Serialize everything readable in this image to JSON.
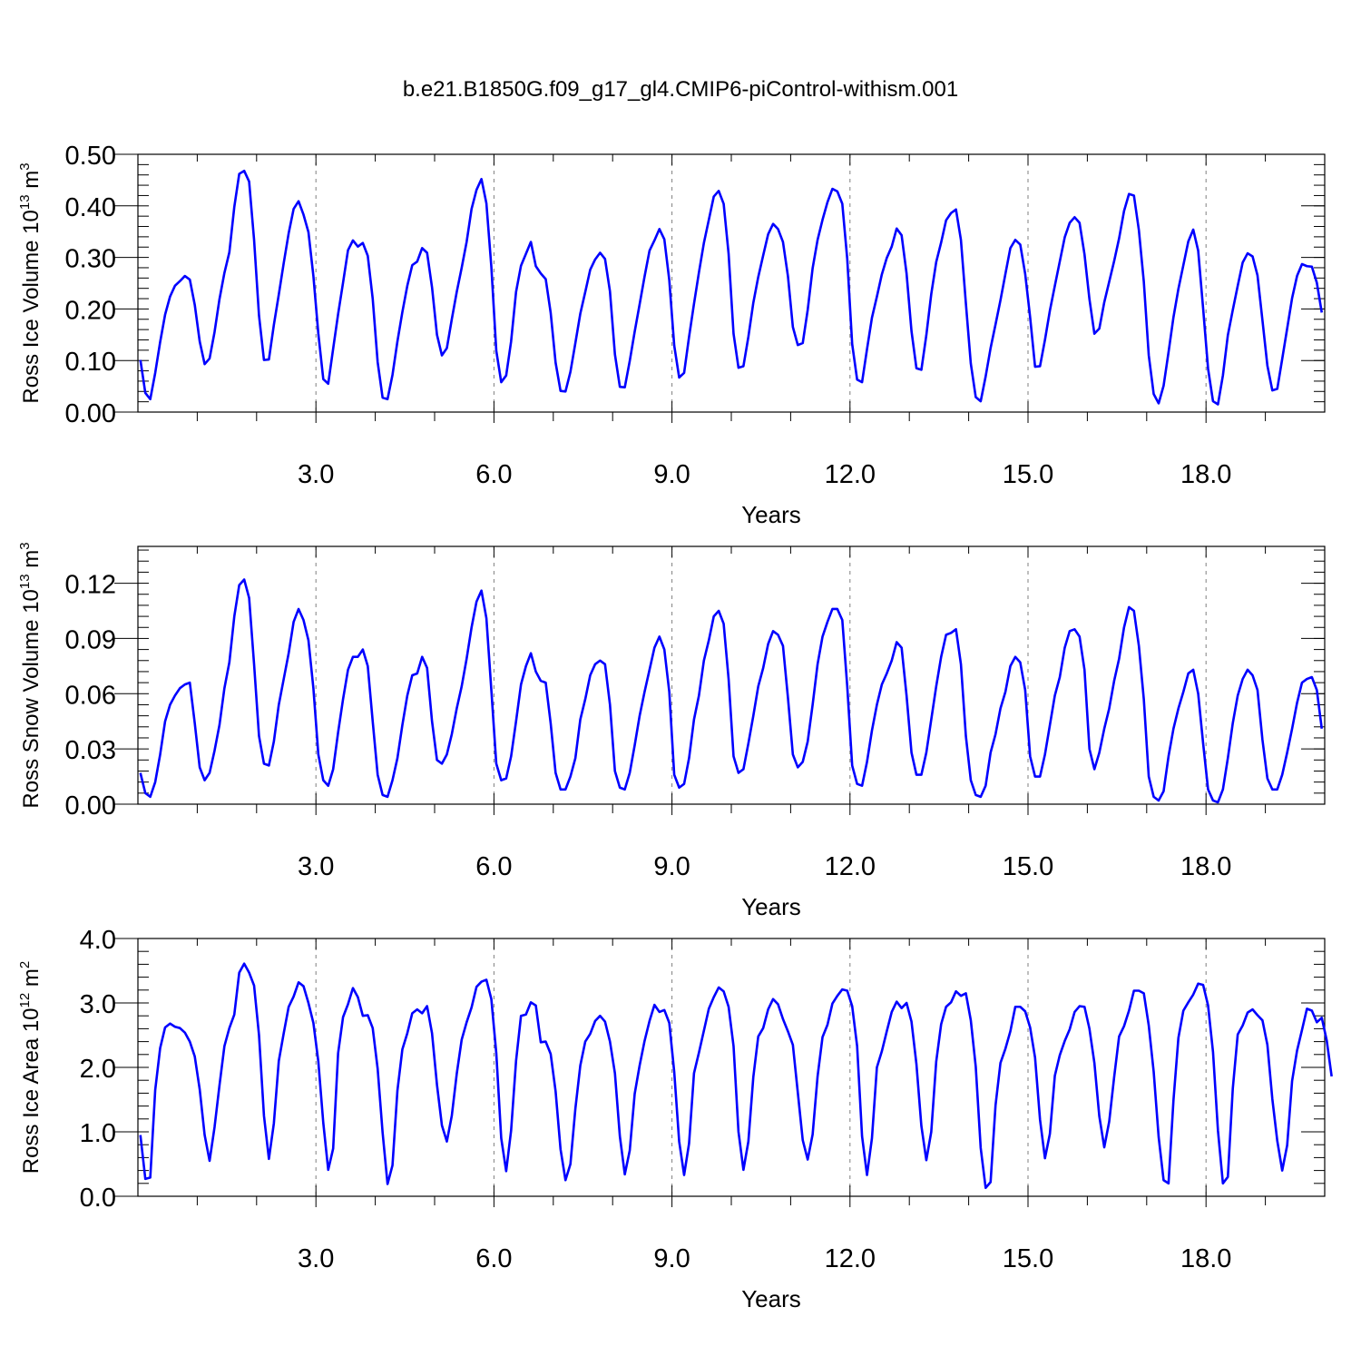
{
  "figure": {
    "title": "b.e21.B1850G.f09_g17_gl4.CMIP6-piControl-withism.001"
  },
  "colors": {
    "series": "#0000ff",
    "frame": "#000000",
    "gridline": "#7f7f7f"
  },
  "chart_data": [
    {
      "type": "line",
      "xlabel": "Years",
      "ylabel": {
        "prefix": "Ross Ice Volume 10",
        "exponent": "13",
        "unit": " m",
        "unit_exponent": "3"
      },
      "xlim": [
        0.0,
        20.0
      ],
      "ylim": [
        0.0,
        0.5
      ],
      "x_ticks": [
        3.0,
        6.0,
        9.0,
        12.0,
        15.0,
        18.0
      ],
      "x_tick_labels": [
        "3.0",
        "6.0",
        "9.0",
        "12.0",
        "15.0",
        "18.0"
      ],
      "y_ticks": [
        0.0,
        0.1,
        0.2,
        0.3,
        0.4,
        0.5
      ],
      "y_tick_labels": [
        "0.00",
        "0.10",
        "0.20",
        "0.30",
        "0.40",
        "0.50"
      ],
      "vertical_dashed_lines_at": [
        3.0,
        6.0,
        9.0,
        12.0,
        15.0,
        18.0
      ],
      "x_start": 0.0417,
      "x_step": 0.0833,
      "values": [
        0.101,
        0.037,
        0.025,
        0.076,
        0.136,
        0.189,
        0.224,
        0.245,
        0.254,
        0.264,
        0.257,
        0.208,
        0.137,
        0.093,
        0.104,
        0.155,
        0.219,
        0.27,
        0.31,
        0.398,
        0.462,
        0.468,
        0.447,
        0.334,
        0.187,
        0.101,
        0.102,
        0.169,
        0.228,
        0.289,
        0.347,
        0.394,
        0.409,
        0.383,
        0.349,
        0.264,
        0.152,
        0.064,
        0.055,
        0.123,
        0.19,
        0.251,
        0.314,
        0.333,
        0.321,
        0.328,
        0.303,
        0.22,
        0.097,
        0.028,
        0.025,
        0.072,
        0.137,
        0.194,
        0.245,
        0.285,
        0.292,
        0.318,
        0.309,
        0.242,
        0.15,
        0.11,
        0.124,
        0.18,
        0.233,
        0.28,
        0.33,
        0.394,
        0.431,
        0.452,
        0.405,
        0.282,
        0.119,
        0.058,
        0.071,
        0.137,
        0.233,
        0.284,
        0.307,
        0.33,
        0.283,
        0.269,
        0.258,
        0.193,
        0.096,
        0.041,
        0.04,
        0.078,
        0.134,
        0.191,
        0.233,
        0.276,
        0.296,
        0.309,
        0.297,
        0.234,
        0.112,
        0.049,
        0.048,
        0.099,
        0.156,
        0.209,
        0.263,
        0.313,
        0.333,
        0.355,
        0.335,
        0.256,
        0.129,
        0.067,
        0.076,
        0.146,
        0.21,
        0.271,
        0.328,
        0.373,
        0.418,
        0.429,
        0.404,
        0.307,
        0.152,
        0.086,
        0.089,
        0.146,
        0.212,
        0.262,
        0.304,
        0.345,
        0.365,
        0.355,
        0.33,
        0.264,
        0.165,
        0.13,
        0.134,
        0.198,
        0.279,
        0.334,
        0.373,
        0.407,
        0.433,
        0.428,
        0.404,
        0.297,
        0.132,
        0.063,
        0.058,
        0.122,
        0.183,
        0.224,
        0.267,
        0.299,
        0.321,
        0.356,
        0.343,
        0.269,
        0.157,
        0.085,
        0.082,
        0.149,
        0.229,
        0.291,
        0.329,
        0.372,
        0.386,
        0.393,
        0.334,
        0.211,
        0.094,
        0.029,
        0.021,
        0.069,
        0.124,
        0.17,
        0.217,
        0.268,
        0.318,
        0.334,
        0.325,
        0.268,
        0.184,
        0.088,
        0.089,
        0.14,
        0.197,
        0.245,
        0.292,
        0.339,
        0.367,
        0.378,
        0.367,
        0.306,
        0.219,
        0.152,
        0.162,
        0.213,
        0.253,
        0.293,
        0.337,
        0.39,
        0.423,
        0.42,
        0.353,
        0.253,
        0.11,
        0.035,
        0.017,
        0.051,
        0.116,
        0.184,
        0.239,
        0.285,
        0.331,
        0.354,
        0.313,
        0.201,
        0.084,
        0.021,
        0.015,
        0.071,
        0.149,
        0.198,
        0.245,
        0.29,
        0.308,
        0.302,
        0.265,
        0.178,
        0.09,
        0.042,
        0.045,
        0.103,
        0.162,
        0.221,
        0.264,
        0.287,
        0.283,
        0.282,
        0.251,
        0.193
      ]
    },
    {
      "type": "line",
      "xlabel": "Years",
      "ylabel": {
        "prefix": "Ross Snow Volume 10",
        "exponent": "13",
        "unit": " m",
        "unit_exponent": "3"
      },
      "xlim": [
        0.0,
        20.0
      ],
      "ylim": [
        0.0,
        0.14
      ],
      "x_ticks": [
        3.0,
        6.0,
        9.0,
        12.0,
        15.0,
        18.0
      ],
      "x_tick_labels": [
        "3.0",
        "6.0",
        "9.0",
        "12.0",
        "15.0",
        "18.0"
      ],
      "y_ticks": [
        0.0,
        0.03,
        0.06,
        0.09,
        0.12
      ],
      "y_tick_labels": [
        "0.00",
        "0.03",
        "0.06",
        "0.09",
        "0.12"
      ],
      "vertical_dashed_lines_at": [
        3.0,
        6.0,
        9.0,
        12.0,
        15.0,
        18.0
      ],
      "x_start": 0.0417,
      "x_step": 0.0833,
      "values": [
        0.017,
        0.006,
        0.004,
        0.012,
        0.027,
        0.045,
        0.054,
        0.059,
        0.063,
        0.065,
        0.066,
        0.044,
        0.02,
        0.013,
        0.017,
        0.029,
        0.043,
        0.063,
        0.077,
        0.102,
        0.119,
        0.122,
        0.112,
        0.076,
        0.037,
        0.022,
        0.021,
        0.034,
        0.054,
        0.068,
        0.082,
        0.099,
        0.106,
        0.1,
        0.089,
        0.063,
        0.027,
        0.013,
        0.01,
        0.019,
        0.039,
        0.057,
        0.073,
        0.08,
        0.08,
        0.084,
        0.075,
        0.045,
        0.016,
        0.005,
        0.004,
        0.013,
        0.025,
        0.043,
        0.059,
        0.07,
        0.071,
        0.08,
        0.074,
        0.045,
        0.024,
        0.022,
        0.027,
        0.038,
        0.052,
        0.064,
        0.079,
        0.096,
        0.11,
        0.116,
        0.101,
        0.062,
        0.022,
        0.013,
        0.014,
        0.026,
        0.045,
        0.065,
        0.075,
        0.082,
        0.072,
        0.067,
        0.066,
        0.044,
        0.017,
        0.008,
        0.008,
        0.015,
        0.025,
        0.046,
        0.057,
        0.07,
        0.076,
        0.078,
        0.076,
        0.054,
        0.018,
        0.009,
        0.008,
        0.017,
        0.032,
        0.048,
        0.061,
        0.073,
        0.085,
        0.091,
        0.084,
        0.061,
        0.016,
        0.009,
        0.011,
        0.025,
        0.046,
        0.059,
        0.078,
        0.089,
        0.102,
        0.105,
        0.098,
        0.068,
        0.026,
        0.017,
        0.019,
        0.033,
        0.048,
        0.064,
        0.074,
        0.087,
        0.094,
        0.092,
        0.086,
        0.058,
        0.027,
        0.02,
        0.023,
        0.034,
        0.054,
        0.076,
        0.091,
        0.099,
        0.106,
        0.106,
        0.1,
        0.064,
        0.021,
        0.011,
        0.01,
        0.023,
        0.04,
        0.054,
        0.065,
        0.071,
        0.078,
        0.088,
        0.085,
        0.059,
        0.028,
        0.016,
        0.016,
        0.028,
        0.046,
        0.064,
        0.08,
        0.092,
        0.093,
        0.095,
        0.076,
        0.037,
        0.013,
        0.005,
        0.004,
        0.01,
        0.028,
        0.038,
        0.052,
        0.061,
        0.075,
        0.08,
        0.077,
        0.062,
        0.026,
        0.015,
        0.015,
        0.027,
        0.043,
        0.059,
        0.069,
        0.085,
        0.094,
        0.095,
        0.091,
        0.073,
        0.03,
        0.019,
        0.028,
        0.041,
        0.052,
        0.067,
        0.079,
        0.096,
        0.107,
        0.105,
        0.086,
        0.057,
        0.015,
        0.004,
        0.002,
        0.007,
        0.026,
        0.041,
        0.052,
        0.061,
        0.071,
        0.073,
        0.06,
        0.033,
        0.008,
        0.002,
        0.001,
        0.008,
        0.025,
        0.044,
        0.059,
        0.068,
        0.073,
        0.07,
        0.062,
        0.035,
        0.014,
        0.008,
        0.008,
        0.016,
        0.028,
        0.041,
        0.055,
        0.066,
        0.068,
        0.069,
        0.062,
        0.041
      ]
    },
    {
      "type": "line",
      "xlabel": "Years",
      "ylabel": {
        "prefix": "Ross Ice Area 10",
        "exponent": "12",
        "unit": " m",
        "unit_exponent": "2"
      },
      "xlim": [
        0.0,
        20.0
      ],
      "ylim": [
        0.0,
        4.0
      ],
      "x_ticks": [
        3.0,
        6.0,
        9.0,
        12.0,
        15.0,
        18.0
      ],
      "x_tick_labels": [
        "3.0",
        "6.0",
        "9.0",
        "12.0",
        "15.0",
        "18.0"
      ],
      "y_ticks": [
        0.0,
        1.0,
        2.0,
        3.0,
        4.0
      ],
      "y_tick_labels": [
        "0.0",
        "1.0",
        "2.0",
        "3.0",
        "4.0"
      ],
      "vertical_dashed_lines_at": [
        3.0,
        6.0,
        9.0,
        12.0,
        15.0,
        18.0
      ],
      "x_start": 0.0417,
      "x_step": 0.0833,
      "values": [
        0.95,
        0.27,
        0.29,
        1.65,
        2.3,
        2.62,
        2.68,
        2.63,
        2.61,
        2.54,
        2.4,
        2.17,
        1.66,
        0.95,
        0.55,
        1.07,
        1.72,
        2.33,
        2.61,
        2.82,
        3.47,
        3.61,
        3.47,
        3.27,
        2.5,
        1.25,
        0.58,
        1.13,
        2.1,
        2.53,
        2.94,
        3.1,
        3.32,
        3.26,
        3.0,
        2.69,
        2.09,
        1.14,
        0.41,
        0.74,
        2.22,
        2.78,
        2.98,
        3.23,
        3.09,
        2.8,
        2.81,
        2.61,
        1.98,
        0.99,
        0.19,
        0.48,
        1.64,
        2.28,
        2.53,
        2.84,
        2.9,
        2.84,
        2.95,
        2.53,
        1.73,
        1.1,
        0.85,
        1.25,
        1.9,
        2.43,
        2.7,
        2.93,
        3.25,
        3.33,
        3.36,
        3.06,
        2.22,
        0.9,
        0.39,
        1.02,
        2.1,
        2.8,
        2.82,
        3.01,
        2.96,
        2.39,
        2.4,
        2.21,
        1.63,
        0.73,
        0.25,
        0.5,
        1.36,
        2.03,
        2.4,
        2.52,
        2.72,
        2.8,
        2.71,
        2.4,
        1.91,
        0.93,
        0.34,
        0.71,
        1.59,
        2.03,
        2.41,
        2.72,
        2.97,
        2.86,
        2.89,
        2.69,
        1.93,
        0.85,
        0.33,
        0.82,
        1.91,
        2.23,
        2.57,
        2.91,
        3.09,
        3.24,
        3.18,
        2.94,
        2.33,
        1.0,
        0.41,
        0.85,
        1.85,
        2.48,
        2.61,
        2.9,
        3.06,
        2.98,
        2.75,
        2.56,
        2.35,
        1.61,
        0.87,
        0.57,
        0.96,
        1.86,
        2.47,
        2.66,
        2.99,
        3.11,
        3.21,
        3.19,
        2.95,
        2.33,
        0.93,
        0.33,
        0.9,
        2.0,
        2.25,
        2.56,
        2.86,
        3.02,
        2.92,
        3.0,
        2.71,
        2.05,
        1.09,
        0.56,
        1.0,
        2.09,
        2.67,
        2.94,
        3.01,
        3.18,
        3.11,
        3.15,
        2.73,
        2.01,
        0.75,
        0.13,
        0.22,
        1.41,
        2.07,
        2.29,
        2.56,
        2.94,
        2.94,
        2.87,
        2.62,
        2.15,
        1.19,
        0.59,
        0.97,
        1.87,
        2.19,
        2.41,
        2.59,
        2.86,
        2.95,
        2.94,
        2.6,
        2.07,
        1.24,
        0.76,
        1.16,
        1.85,
        2.48,
        2.64,
        2.88,
        3.19,
        3.19,
        3.15,
        2.65,
        1.93,
        0.92,
        0.25,
        0.2,
        1.49,
        2.46,
        2.88,
        3.01,
        3.13,
        3.3,
        3.28,
        2.96,
        2.24,
        1.02,
        0.2,
        0.3,
        1.67,
        2.51,
        2.65,
        2.85,
        2.9,
        2.81,
        2.73,
        2.35,
        1.51,
        0.86,
        0.4,
        0.79,
        1.79,
        2.26,
        2.58,
        2.91,
        2.88,
        2.7,
        2.77,
        2.42,
        1.86
      ]
    }
  ]
}
